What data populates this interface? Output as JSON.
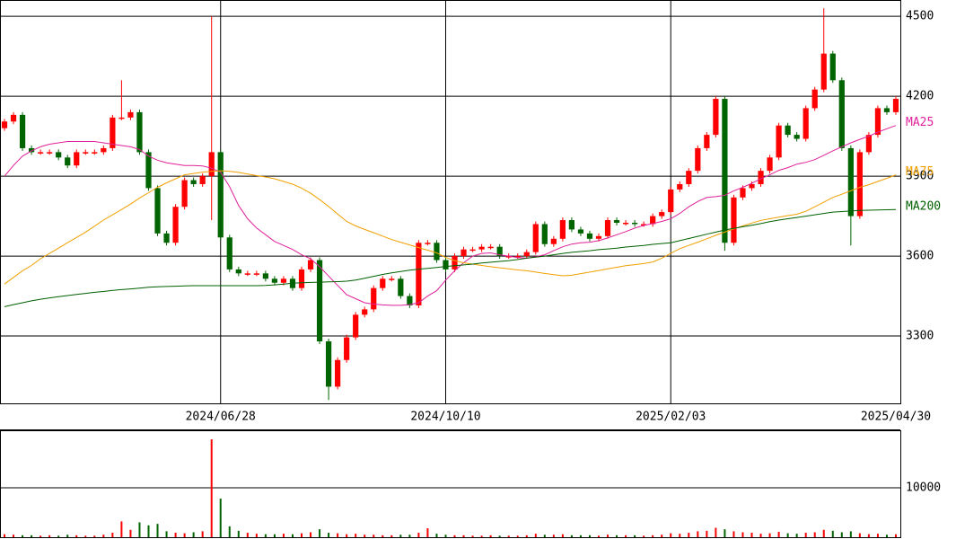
{
  "chart_data": {
    "type": "candlestick",
    "categories": [
      null,
      null,
      null,
      null,
      null,
      null,
      null,
      null,
      null,
      null,
      null,
      null,
      null,
      null,
      null,
      null,
      null,
      null,
      null,
      null,
      null,
      null,
      null,
      null,
      "2024/06/28",
      null,
      null,
      null,
      null,
      null,
      null,
      null,
      null,
      null,
      null,
      null,
      null,
      null,
      null,
      null,
      null,
      null,
      null,
      null,
      null,
      null,
      null,
      null,
      null,
      "2024/10/10",
      null,
      null,
      null,
      null,
      null,
      null,
      null,
      null,
      null,
      null,
      null,
      null,
      null,
      null,
      null,
      null,
      null,
      null,
      null,
      null,
      null,
      null,
      null,
      null,
      "2025/02/03",
      null,
      null,
      null,
      null,
      null,
      null,
      null,
      null,
      null,
      null,
      null,
      null,
      null,
      null,
      null,
      null,
      null,
      null,
      null,
      null,
      null,
      null,
      null,
      null,
      "2025/04/30"
    ],
    "open": [
      4080,
      4105,
      4130,
      4005,
      3990,
      3990,
      3990,
      3970,
      3940,
      3990,
      3990,
      3990,
      4005,
      4120,
      4120,
      4140,
      3990,
      3855,
      3685,
      3650,
      3785,
      3885,
      3870,
      3900,
      3990,
      3670,
      3550,
      3535,
      3535,
      3535,
      3515,
      3500,
      3515,
      3480,
      3550,
      3585,
      3280,
      3110,
      3210,
      3295,
      3380,
      3400,
      3480,
      3515,
      3515,
      3450,
      3415,
      3650,
      3650,
      3585,
      3550,
      3600,
      3625,
      3625,
      3635,
      3635,
      3600,
      3600,
      3600,
      3615,
      3720,
      3645,
      3665,
      3735,
      3700,
      3685,
      3665,
      3675,
      3735,
      3725,
      3725,
      3720,
      3720,
      3750,
      3765,
      3850,
      3870,
      3920,
      4005,
      4055,
      4190,
      3650,
      3820,
      3855,
      3870,
      3920,
      3970,
      4090,
      4055,
      4040,
      4155,
      4225,
      4360,
      4260,
      4005,
      3750,
      3990,
      4055,
      4155,
      4140
    ],
    "high": [
      4115,
      4140,
      4140,
      4015,
      4000,
      4000,
      4000,
      3980,
      4000,
      4000,
      4000,
      4015,
      4130,
      4260,
      4150,
      4150,
      4000,
      3865,
      3695,
      3795,
      3895,
      3895,
      3910,
      4500,
      4000,
      3680,
      3560,
      3545,
      3545,
      3545,
      3525,
      3525,
      3525,
      3560,
      3595,
      3595,
      3290,
      3220,
      3305,
      3390,
      3410,
      3490,
      3525,
      3525,
      3525,
      3460,
      3660,
      3660,
      3660,
      3595,
      3610,
      3635,
      3635,
      3645,
      3645,
      3645,
      3610,
      3610,
      3625,
      3730,
      3730,
      3675,
      3745,
      3745,
      3710,
      3695,
      3685,
      3745,
      3745,
      3735,
      3735,
      3730,
      3760,
      3775,
      3860,
      3880,
      3930,
      4015,
      4065,
      4200,
      4200,
      3830,
      3865,
      3880,
      3930,
      3980,
      4100,
      4100,
      4065,
      4165,
      4235,
      4530,
      4370,
      4270,
      4015,
      4000,
      4065,
      4165,
      4165,
      4200
    ],
    "low": [
      4070,
      4095,
      3995,
      3980,
      3980,
      3980,
      3960,
      3930,
      3930,
      3980,
      3980,
      3980,
      3995,
      4110,
      4110,
      3980,
      3845,
      3675,
      3640,
      3640,
      3775,
      3860,
      3860,
      3735,
      3660,
      3540,
      3525,
      3525,
      3525,
      3505,
      3490,
      3490,
      3470,
      3470,
      3540,
      3270,
      3060,
      3100,
      3200,
      3285,
      3370,
      3390,
      3470,
      3505,
      3440,
      3405,
      3405,
      3640,
      3575,
      3540,
      3540,
      3590,
      3615,
      3615,
      3625,
      3590,
      3590,
      3590,
      3590,
      3605,
      3635,
      3635,
      3655,
      3690,
      3675,
      3655,
      3655,
      3665,
      3715,
      3715,
      3710,
      3710,
      3710,
      3740,
      3755,
      3840,
      3860,
      3910,
      3995,
      4045,
      3620,
      3640,
      3810,
      3845,
      3860,
      3910,
      3960,
      4045,
      4030,
      4030,
      4145,
      4215,
      4250,
      3995,
      3640,
      3740,
      3980,
      4045,
      4130,
      4130
    ],
    "close": [
      4105,
      4130,
      4005,
      3990,
      3990,
      3990,
      3970,
      3940,
      3990,
      3990,
      3990,
      4005,
      4120,
      4120,
      4140,
      3990,
      3855,
      3685,
      3650,
      3785,
      3885,
      3870,
      3900,
      3990,
      3670,
      3550,
      3535,
      3535,
      3535,
      3515,
      3500,
      3515,
      3480,
      3550,
      3585,
      3280,
      3110,
      3210,
      3295,
      3380,
      3400,
      3480,
      3515,
      3515,
      3450,
      3415,
      3650,
      3650,
      3585,
      3550,
      3600,
      3625,
      3625,
      3635,
      3635,
      3600,
      3600,
      3600,
      3615,
      3720,
      3645,
      3665,
      3735,
      3700,
      3685,
      3665,
      3675,
      3735,
      3725,
      3725,
      3720,
      3720,
      3750,
      3765,
      3850,
      3870,
      3920,
      4005,
      4055,
      4190,
      3650,
      3820,
      3855,
      3870,
      3920,
      3970,
      4090,
      4055,
      4040,
      4155,
      4225,
      4360,
      4260,
      4005,
      3750,
      3990,
      4055,
      4155,
      4140,
      4190
    ],
    "up_color": "#ff0000",
    "down_color": "#006400",
    "series": [
      {
        "name": "MA25",
        "color": "#e0209a",
        "values": [
          3900,
          3940,
          3975,
          3995,
          4010,
          4020,
          4025,
          4030,
          4030,
          4030,
          4030,
          4025,
          4020,
          4015,
          4010,
          4000,
          3975,
          3960,
          3950,
          3945,
          3940,
          3940,
          3938,
          3930,
          3915,
          3860,
          3790,
          3740,
          3705,
          3680,
          3655,
          3640,
          3625,
          3605,
          3590,
          3560,
          3525,
          3490,
          3455,
          3440,
          3425,
          3420,
          3417,
          3415,
          3415,
          3418,
          3425,
          3450,
          3470,
          3510,
          3545,
          3575,
          3600,
          3610,
          3612,
          3605,
          3600,
          3595,
          3592,
          3598,
          3605,
          3620,
          3635,
          3645,
          3650,
          3652,
          3658,
          3668,
          3680,
          3692,
          3705,
          3715,
          3722,
          3730,
          3740,
          3760,
          3785,
          3805,
          3820,
          3823,
          3828,
          3845,
          3858,
          3873,
          3890,
          3905,
          3922,
          3932,
          3945,
          3952,
          3962,
          3978,
          3995,
          4010,
          4025,
          4038,
          4050,
          4065,
          4078,
          4090
        ]
      },
      {
        "name": "MA75",
        "color": "#f0a000",
        "values": [
          3495,
          3520,
          3545,
          3565,
          3590,
          3610,
          3630,
          3650,
          3670,
          3690,
          3712,
          3735,
          3755,
          3775,
          3795,
          3818,
          3838,
          3858,
          3875,
          3890,
          3905,
          3910,
          3915,
          3918,
          3920,
          3918,
          3914,
          3908,
          3902,
          3897,
          3890,
          3880,
          3870,
          3855,
          3836,
          3812,
          3786,
          3758,
          3730,
          3713,
          3700,
          3688,
          3675,
          3662,
          3652,
          3642,
          3632,
          3622,
          3612,
          3595,
          3583,
          3575,
          3570,
          3565,
          3560,
          3556,
          3552,
          3548,
          3545,
          3540,
          3535,
          3530,
          3526,
          3528,
          3534,
          3540,
          3546,
          3552,
          3558,
          3564,
          3568,
          3572,
          3578,
          3592,
          3610,
          3628,
          3640,
          3652,
          3665,
          3678,
          3690,
          3702,
          3713,
          3724,
          3734,
          3740,
          3746,
          3752,
          3757,
          3768,
          3785,
          3802,
          3820,
          3832,
          3845,
          3858,
          3868,
          3880,
          3892,
          3905
        ]
      },
      {
        "name": "MA200",
        "color": "#006000",
        "values": [
          3410,
          3418,
          3425,
          3432,
          3438,
          3443,
          3448,
          3452,
          3456,
          3460,
          3464,
          3467,
          3471,
          3474,
          3477,
          3480,
          3483,
          3485,
          3486,
          3487,
          3488,
          3489,
          3489,
          3489,
          3489,
          3489,
          3489,
          3489,
          3489,
          3490,
          3492,
          3495,
          3498,
          3500,
          3501,
          3502,
          3503,
          3504,
          3506,
          3510,
          3517,
          3524,
          3531,
          3537,
          3542,
          3547,
          3551,
          3554,
          3557,
          3561,
          3564,
          3567,
          3570,
          3574,
          3577,
          3580,
          3583,
          3587,
          3592,
          3596,
          3600,
          3605,
          3610,
          3614,
          3617,
          3620,
          3624,
          3627,
          3630,
          3634,
          3637,
          3640,
          3644,
          3647,
          3650,
          3658,
          3666,
          3674,
          3682,
          3690,
          3698,
          3704,
          3710,
          3716,
          3722,
          3729,
          3735,
          3740,
          3745,
          3750,
          3755,
          3760,
          3765,
          3767,
          3769,
          3771,
          3772,
          3773,
          3774,
          3775
        ]
      }
    ],
    "ylim": [
      3044,
      4561
    ],
    "yticks": [
      3300,
      3600,
      3900,
      4200,
      4500
    ],
    "grid": true,
    "volume": {
      "values": [
        600,
        500,
        400,
        400,
        300,
        400,
        300,
        500,
        400,
        300,
        300,
        500,
        900,
        3200,
        1500,
        3000,
        2400,
        2700,
        1200,
        900,
        800,
        1000,
        1200,
        19800,
        7800,
        2200,
        1300,
        900,
        700,
        600,
        600,
        700,
        600,
        800,
        1000,
        1600,
        900,
        800,
        600,
        700,
        500,
        500,
        400,
        400,
        500,
        500,
        900,
        1800,
        700,
        500,
        400,
        400,
        300,
        300,
        400,
        300,
        300,
        300,
        400,
        700,
        500,
        500,
        600,
        400,
        400,
        400,
        300,
        500,
        400,
        400,
        400,
        300,
        400,
        500,
        800,
        700,
        900,
        1200,
        1300,
        1900,
        1600,
        1200,
        1000,
        900,
        700,
        800,
        1100,
        800,
        700,
        900,
        1000,
        1500,
        1300,
        1000,
        1200,
        800,
        600,
        700,
        500,
        600
      ],
      "ylim": [
        0,
        21450
      ],
      "yticks": [
        10000
      ]
    }
  }
}
